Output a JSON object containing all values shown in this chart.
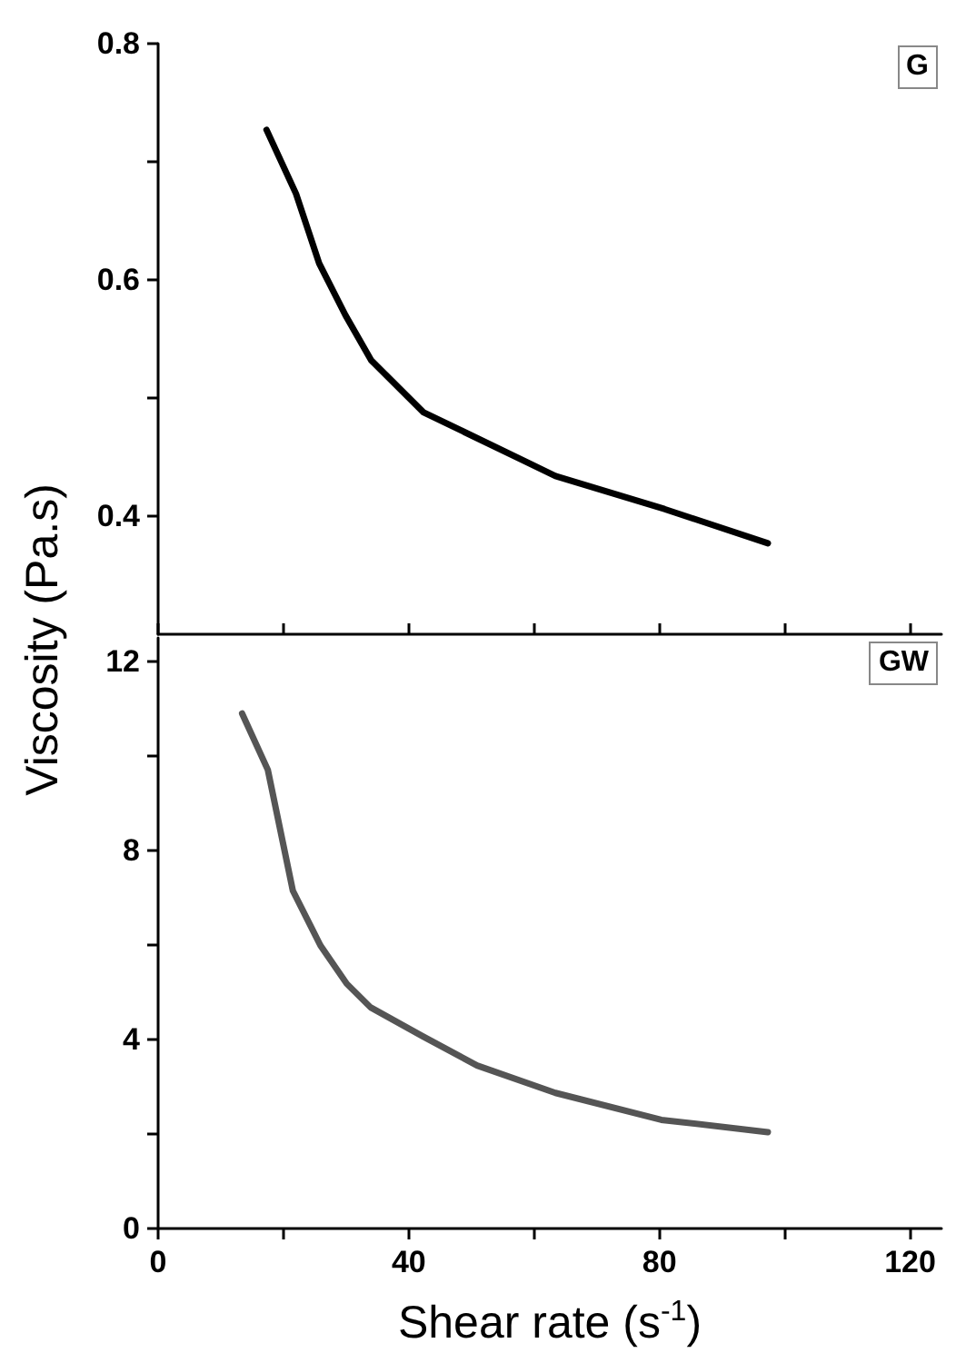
{
  "chart_data": [
    {
      "type": "line",
      "ylabel": "Viscosity (Pa.s)",
      "annotations": [
        "G"
      ],
      "tick_labels": "y",
      "xlim": [
        0,
        125
      ],
      "xticks": [
        0,
        {
          "value": 20,
          "label": null
        },
        40,
        {
          "value": 60,
          "label": null
        },
        80,
        {
          "value": 100,
          "label": null
        },
        120
      ],
      "ylim": [
        0.3,
        0.8
      ],
      "yticks": [
        {
          "value": 0.4,
          "label": "0.4"
        },
        {
          "value": 0.5,
          "label": null
        },
        {
          "value": 0.6,
          "label": "0.6"
        },
        {
          "value": 0.7,
          "label": null
        },
        {
          "value": 0.8,
          "label": "0.8"
        }
      ],
      "series": [
        {
          "color": "#000000",
          "x": [
            17.3,
            22.0,
            25.7,
            29.9,
            34.0,
            42.3,
            63.4,
            80.8,
            97.3
          ],
          "values": [
            0.727,
            0.673,
            0.614,
            0.57,
            0.532,
            0.488,
            0.434,
            0.406,
            0.377
          ]
        }
      ]
    },
    {
      "type": "line",
      "xlabel": "Shear rate (s$^{-1}$)",
      "annotations": [
        "GW"
      ],
      "xlim": [
        0,
        125
      ],
      "xticks": [
        0,
        {
          "value": 20,
          "label": null
        },
        40,
        {
          "value": 60,
          "label": null
        },
        80,
        {
          "value": 100,
          "label": null
        },
        120
      ],
      "ylim": [
        0,
        12.5
      ],
      "yticks": [
        0,
        {
          "value": 2,
          "label": null
        },
        4,
        {
          "value": 6,
          "label": null
        },
        8,
        {
          "value": 10,
          "label": null
        },
        12
      ],
      "series": [
        {
          "color": "#555555",
          "x": [
            13.4,
            17.5,
            21.5,
            25.9,
            30.1,
            33.9,
            42.2,
            50.9,
            63.4,
            80.3,
            97.3
          ],
          "values": [
            10.9,
            9.71,
            7.15,
            5.99,
            5.18,
            4.68,
            4.07,
            3.45,
            2.87,
            2.3,
            2.04
          ]
        }
      ]
    }
  ]
}
